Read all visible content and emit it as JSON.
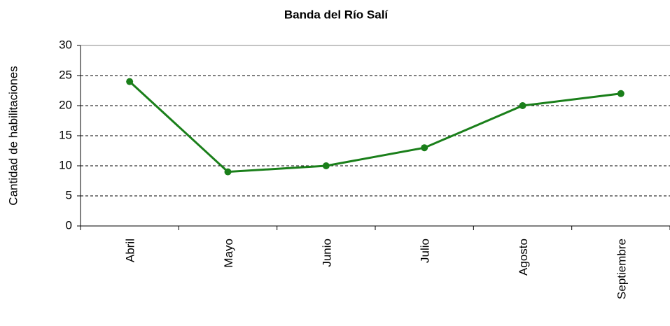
{
  "chart_data": {
    "type": "line",
    "title": "Banda del Río Salí",
    "y_label": "Cantidad de habilitaciones",
    "categories": [
      "Abril",
      "Mayo",
      "Junio",
      "Julio",
      "Agosto",
      "Septiembre"
    ],
    "values": [
      24,
      9,
      10,
      13,
      20,
      22
    ],
    "color": "#1a7f1a",
    "ylim": [
      0,
      30
    ],
    "yticks": [
      0,
      5,
      10,
      15,
      20,
      25,
      30
    ],
    "grid": true
  }
}
